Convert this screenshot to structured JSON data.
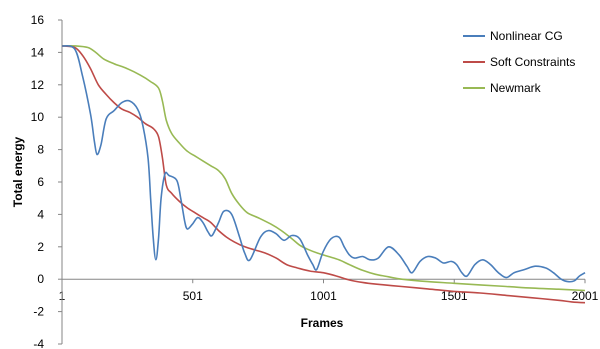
{
  "chart_data": {
    "type": "line",
    "xlabel": "Frames",
    "ylabel": "Total energy",
    "xlim": [
      1,
      2001
    ],
    "ylim": [
      -4,
      16
    ],
    "x_ticks": [
      "1",
      "501",
      "1001",
      "1501",
      "2001"
    ],
    "y_ticks": [
      "-4",
      "-2",
      "0",
      "2",
      "4",
      "6",
      "8",
      "10",
      "12",
      "14",
      "16"
    ],
    "grid": false,
    "legend_position": "top-right",
    "series": [
      {
        "name": "Nonlinear CG",
        "color": "#4a7ebb",
        "points": [
          [
            1,
            14.4
          ],
          [
            50,
            14.2
          ],
          [
            80,
            12.5
          ],
          [
            110,
            10.2
          ],
          [
            125,
            8.5
          ],
          [
            135,
            7.7
          ],
          [
            150,
            8.3
          ],
          [
            170,
            9.9
          ],
          [
            200,
            10.4
          ],
          [
            230,
            10.9
          ],
          [
            260,
            11.0
          ],
          [
            290,
            10.5
          ],
          [
            310,
            9.5
          ],
          [
            330,
            7.5
          ],
          [
            340,
            5.0
          ],
          [
            350,
            2.5
          ],
          [
            360,
            1.2
          ],
          [
            370,
            2.5
          ],
          [
            380,
            5.0
          ],
          [
            395,
            6.5
          ],
          [
            410,
            6.4
          ],
          [
            440,
            6.1
          ],
          [
            455,
            5.0
          ],
          [
            470,
            3.6
          ],
          [
            480,
            3.1
          ],
          [
            500,
            3.4
          ],
          [
            520,
            3.8
          ],
          [
            540,
            3.5
          ],
          [
            560,
            2.9
          ],
          [
            575,
            2.7
          ],
          [
            600,
            3.5
          ],
          [
            620,
            4.2
          ],
          [
            650,
            4.0
          ],
          [
            680,
            2.6
          ],
          [
            700,
            1.6
          ],
          [
            720,
            1.2
          ],
          [
            760,
            2.6
          ],
          [
            790,
            3.0
          ],
          [
            820,
            2.8
          ],
          [
            850,
            2.4
          ],
          [
            880,
            2.7
          ],
          [
            910,
            2.5
          ],
          [
            940,
            1.5
          ],
          [
            960,
            0.9
          ],
          [
            975,
            0.6
          ],
          [
            1000,
            1.7
          ],
          [
            1030,
            2.5
          ],
          [
            1060,
            2.6
          ],
          [
            1080,
            2.0
          ],
          [
            1100,
            1.5
          ],
          [
            1120,
            1.3
          ],
          [
            1150,
            1.4
          ],
          [
            1180,
            1.2
          ],
          [
            1210,
            1.3
          ],
          [
            1250,
            2.0
          ],
          [
            1290,
            1.5
          ],
          [
            1320,
            0.8
          ],
          [
            1340,
            0.4
          ],
          [
            1370,
            1.1
          ],
          [
            1400,
            1.4
          ],
          [
            1430,
            1.3
          ],
          [
            1460,
            1.0
          ],
          [
            1490,
            1.1
          ],
          [
            1510,
            0.9
          ],
          [
            1530,
            0.4
          ],
          [
            1550,
            0.2
          ],
          [
            1580,
            0.9
          ],
          [
            1610,
            1.2
          ],
          [
            1640,
            0.9
          ],
          [
            1670,
            0.4
          ],
          [
            1700,
            0.1
          ],
          [
            1730,
            0.4
          ],
          [
            1770,
            0.6
          ],
          [
            1810,
            0.8
          ],
          [
            1850,
            0.7
          ],
          [
            1880,
            0.4
          ],
          [
            1910,
            0.0
          ],
          [
            1935,
            -0.15
          ],
          [
            1960,
            -0.1
          ],
          [
            1980,
            0.2
          ],
          [
            2001,
            0.4
          ]
        ]
      },
      {
        "name": "Soft Constraints",
        "color": "#be4b48",
        "points": [
          [
            1,
            14.4
          ],
          [
            50,
            14.3
          ],
          [
            80,
            13.8
          ],
          [
            110,
            13.0
          ],
          [
            140,
            12.0
          ],
          [
            170,
            11.4
          ],
          [
            200,
            10.9
          ],
          [
            230,
            10.5
          ],
          [
            260,
            10.3
          ],
          [
            290,
            10.0
          ],
          [
            320,
            9.6
          ],
          [
            350,
            9.3
          ],
          [
            370,
            8.8
          ],
          [
            385,
            7.5
          ],
          [
            400,
            5.8
          ],
          [
            420,
            5.3
          ],
          [
            450,
            4.8
          ],
          [
            480,
            4.4
          ],
          [
            510,
            4.1
          ],
          [
            540,
            3.8
          ],
          [
            570,
            3.5
          ],
          [
            600,
            3.0
          ],
          [
            630,
            2.6
          ],
          [
            660,
            2.3
          ],
          [
            700,
            2.0
          ],
          [
            740,
            1.8
          ],
          [
            780,
            1.6
          ],
          [
            820,
            1.3
          ],
          [
            860,
            0.9
          ],
          [
            900,
            0.7
          ],
          [
            950,
            0.5
          ],
          [
            1000,
            0.4
          ],
          [
            1050,
            0.2
          ],
          [
            1100,
            -0.05
          ],
          [
            1150,
            -0.2
          ],
          [
            1200,
            -0.3
          ],
          [
            1300,
            -0.45
          ],
          [
            1400,
            -0.6
          ],
          [
            1500,
            -0.75
          ],
          [
            1600,
            -0.85
          ],
          [
            1700,
            -1.0
          ],
          [
            1800,
            -1.15
          ],
          [
            1900,
            -1.3
          ],
          [
            1950,
            -1.4
          ],
          [
            2001,
            -1.45
          ]
        ]
      },
      {
        "name": "Newmark",
        "color": "#98b954",
        "points": [
          [
            1,
            14.4
          ],
          [
            50,
            14.4
          ],
          [
            100,
            14.3
          ],
          [
            130,
            14.0
          ],
          [
            160,
            13.6
          ],
          [
            200,
            13.3
          ],
          [
            250,
            13.0
          ],
          [
            300,
            12.6
          ],
          [
            340,
            12.2
          ],
          [
            370,
            11.8
          ],
          [
            385,
            11.0
          ],
          [
            400,
            9.8
          ],
          [
            420,
            9.0
          ],
          [
            450,
            8.4
          ],
          [
            480,
            7.9
          ],
          [
            510,
            7.6
          ],
          [
            540,
            7.3
          ],
          [
            570,
            7.0
          ],
          [
            600,
            6.7
          ],
          [
            625,
            6.2
          ],
          [
            650,
            5.3
          ],
          [
            680,
            4.6
          ],
          [
            710,
            4.1
          ],
          [
            750,
            3.8
          ],
          [
            800,
            3.4
          ],
          [
            840,
            3.0
          ],
          [
            880,
            2.5
          ],
          [
            910,
            2.1
          ],
          [
            940,
            1.85
          ],
          [
            980,
            1.6
          ],
          [
            1020,
            1.4
          ],
          [
            1060,
            1.2
          ],
          [
            1100,
            0.9
          ],
          [
            1150,
            0.55
          ],
          [
            1200,
            0.3
          ],
          [
            1250,
            0.15
          ],
          [
            1300,
            0.0
          ],
          [
            1400,
            -0.15
          ],
          [
            1500,
            -0.25
          ],
          [
            1600,
            -0.35
          ],
          [
            1700,
            -0.45
          ],
          [
            1800,
            -0.55
          ],
          [
            1900,
            -0.62
          ],
          [
            2001,
            -0.7
          ]
        ]
      }
    ]
  }
}
